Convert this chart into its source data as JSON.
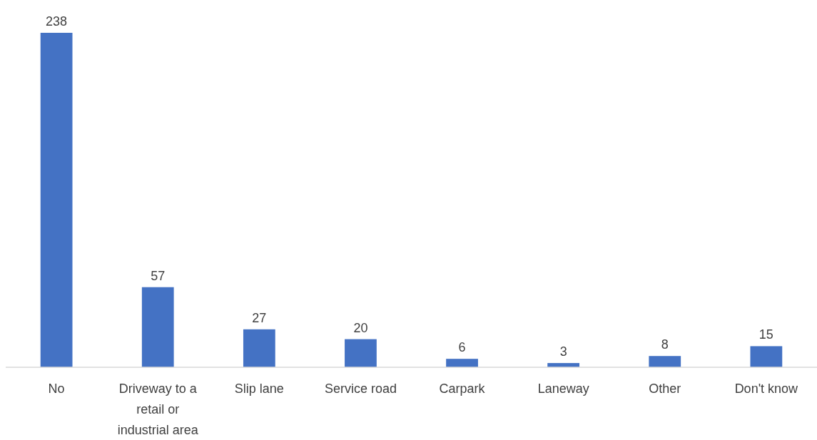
{
  "chart_data": {
    "type": "bar",
    "categories": [
      "No",
      "Driveway to a retail or industrial area",
      "Slip lane",
      "Service road",
      "Carpark",
      "Laneway",
      "Other",
      "Don't know"
    ],
    "values": [
      238,
      57,
      27,
      20,
      6,
      3,
      8,
      15
    ],
    "color": "#4472c4",
    "data_labels": true
  }
}
